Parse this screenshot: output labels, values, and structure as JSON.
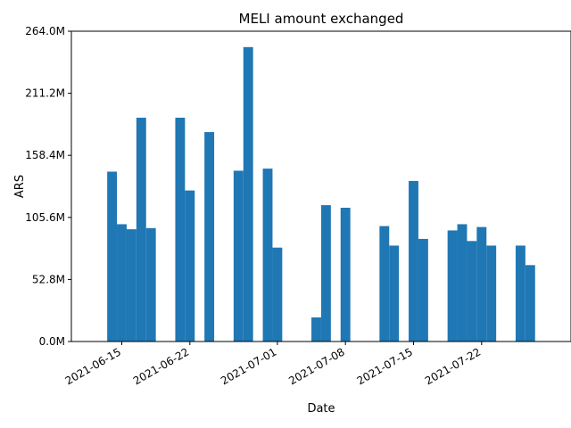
{
  "chart_data": {
    "type": "bar",
    "title": "MELI amount exchanged",
    "xlabel": "Date",
    "ylabel": "ARS",
    "ylim": [
      0,
      264000000
    ],
    "y_ticks": [
      0,
      52800000,
      105600000,
      158400000,
      211200000,
      264000000
    ],
    "y_tick_labels": [
      "0.0M",
      "52.8M",
      "105.6M",
      "158.4M",
      "211.2M",
      "264.0M"
    ],
    "x_tick_dates": [
      "2021-06-15",
      "2021-06-22",
      "2021-07-01",
      "2021-07-08",
      "2021-07-15",
      "2021-07-22"
    ],
    "x_tick_labels": [
      "2021-06-15",
      "2021-06-22",
      "2021-07-01",
      "2021-07-08",
      "2021-07-15",
      "2021-07-22"
    ],
    "grid": false,
    "bar_color": "#1f77b4",
    "series": [
      {
        "x": [
          "2021-06-14",
          "2021-06-15",
          "2021-06-16",
          "2021-06-17",
          "2021-06-18",
          "2021-06-21",
          "2021-06-22",
          "2021-06-24",
          "2021-06-27",
          "2021-06-28",
          "2021-06-30",
          "2021-07-01",
          "2021-07-05",
          "2021-07-06",
          "2021-07-08",
          "2021-07-12",
          "2021-07-13",
          "2021-07-15",
          "2021-07-16",
          "2021-07-19",
          "2021-07-20",
          "2021-07-21",
          "2021-07-22",
          "2021-07-23",
          "2021-07-26",
          "2021-07-27"
        ],
        "values": [
          144500000,
          99800000,
          95500000,
          190400000,
          96500000,
          190400000,
          128500000,
          178200000,
          145300000,
          250500000,
          147100000,
          79900000,
          20500000,
          116000000,
          113800000,
          98200000,
          81600000,
          136600000,
          87300000,
          94500000,
          99800000,
          85500000,
          97400000,
          81600000,
          81600000,
          65000000
        ]
      }
    ]
  }
}
